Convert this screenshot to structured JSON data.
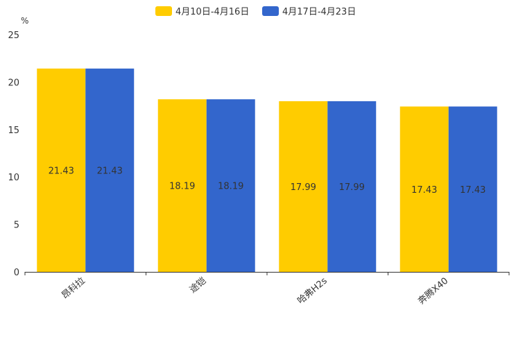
{
  "chart_data": {
    "type": "bar",
    "unit": "%",
    "categories": [
      "昂科拉",
      "途铠",
      "哈弗H2s",
      "奔腾X40"
    ],
    "series": [
      {
        "name": "4月10日-4月16日",
        "color": "#FFCC00",
        "values": [
          21.43,
          18.19,
          17.99,
          17.43
        ]
      },
      {
        "name": "4月17日-4月23日",
        "color": "#3366CC",
        "values": [
          21.43,
          18.19,
          17.99,
          17.43
        ]
      }
    ],
    "data_labels": [
      [
        "21.43",
        "18.19",
        "17.99",
        "17.43"
      ],
      [
        "21.43",
        "18.19",
        "17.99",
        "17.43"
      ]
    ],
    "ylim": [
      0,
      25
    ],
    "yticks": [
      "0",
      "5",
      "10",
      "15",
      "20",
      "25"
    ],
    "legend_position": "top-center",
    "grid": false
  }
}
